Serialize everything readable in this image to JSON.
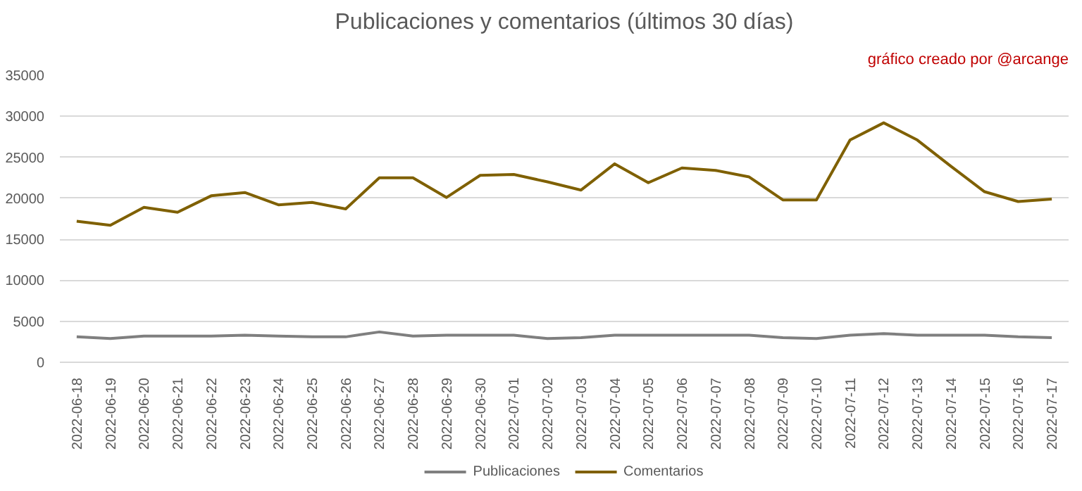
{
  "chart_data": {
    "type": "line",
    "title": "Publicaciones y comentarios (últimos 30 días)",
    "annotations": [
      "gráfico creado por @arcange"
    ],
    "categories": [
      "2022-06-18",
      "2022-06-19",
      "2022-06-20",
      "2022-06-21",
      "2022-06-22",
      "2022-06-23",
      "2022-06-24",
      "2022-06-25",
      "2022-06-26",
      "2022-06-27",
      "2022-06-28",
      "2022-06-29",
      "2022-06-30",
      "2022-07-01",
      "2022-07-02",
      "2022-07-03",
      "2022-07-04",
      "2022-07-05",
      "2022-07-06",
      "2022-07-07",
      "2022-07-08",
      "2022-07-09",
      "2022-07-10",
      "2022-07-11",
      "2022-07-12",
      "2022-07-13",
      "2022-07-14",
      "2022-07-15",
      "2022-07-16",
      "2022-07-17"
    ],
    "series": [
      {
        "name": "Publicaciones",
        "color": "#7f7f7f",
        "values": [
          3100,
          2900,
          3200,
          3200,
          3200,
          3300,
          3200,
          3100,
          3100,
          3700,
          3200,
          3300,
          3300,
          3300,
          2900,
          3000,
          3300,
          3300,
          3300,
          3300,
          3300,
          3000,
          2900,
          3300,
          3500,
          3300,
          3300,
          3300,
          3100,
          3000
        ]
      },
      {
        "name": "Comentarios",
        "color": "#7f6000",
        "values": [
          17200,
          16700,
          18900,
          18300,
          20300,
          20700,
          19200,
          19500,
          18700,
          22500,
          22500,
          20100,
          22800,
          22900,
          22000,
          21000,
          24200,
          21900,
          23700,
          23400,
          22600,
          19800,
          19800,
          27100,
          29200,
          27100,
          23900,
          20800,
          19600,
          19900
        ]
      }
    ],
    "ylim": [
      0,
      35000
    ],
    "yticks": [
      0,
      5000,
      10000,
      15000,
      20000,
      25000,
      30000,
      35000
    ],
    "grid": "y",
    "legend": "bottom",
    "marker": "none",
    "line_style": "solid"
  }
}
